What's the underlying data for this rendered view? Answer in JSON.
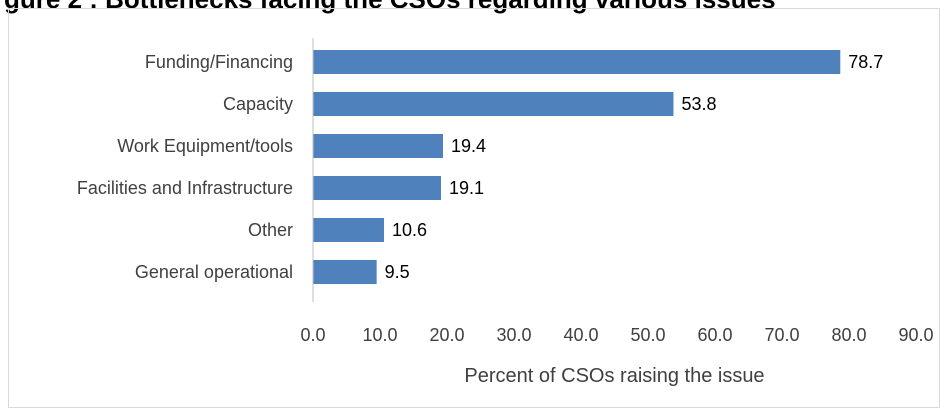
{
  "chart_data": {
    "type": "bar",
    "orientation": "horizontal",
    "title": "",
    "xlabel": "Percent of CSOs raising the issue",
    "ylabel": "",
    "categories": [
      "Funding/Financing",
      "Capacity",
      "Work Equipment/tools",
      "Facilities and Infrastructure",
      "Other",
      "General operational"
    ],
    "values": [
      78.7,
      53.8,
      19.4,
      19.1,
      10.6,
      9.5
    ],
    "data_labels": [
      "78.7",
      "53.8",
      "19.4",
      "19.1",
      "10.6",
      "9.5"
    ],
    "xlim": [
      0,
      90
    ],
    "xticks": [
      "0.0",
      "10.0",
      "20.0",
      "30.0",
      "40.0",
      "50.0",
      "60.0",
      "70.0",
      "80.0",
      "90.0"
    ],
    "grid": false,
    "legend": "none",
    "bar_color": "#4f81bd"
  }
}
